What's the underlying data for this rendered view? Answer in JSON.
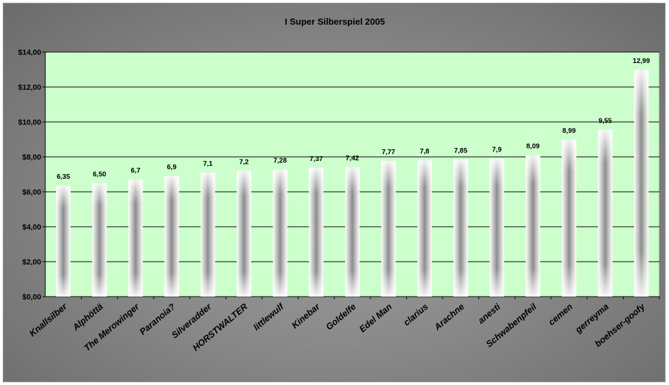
{
  "chart_data": {
    "type": "bar",
    "title": "I Super Silberspiel 2005",
    "xlabel": "",
    "ylabel": "",
    "ylim": [
      0,
      14
    ],
    "yticks": [
      0,
      2,
      4,
      6,
      8,
      10,
      12,
      14
    ],
    "ytick_labels": [
      "$0,00",
      "$2,00",
      "$4,00",
      "$6,00",
      "$8,00",
      "$10,00",
      "$12,00",
      "$14,00"
    ],
    "grid": true,
    "legend": "none",
    "categories": [
      "Knallsilber",
      "Alphöttä",
      "The Merowinger",
      "Paranoia?",
      "Silveradder",
      "HORSTWALTER",
      "littlewulf",
      "Kinebar",
      "Goldelfe",
      "Edel Man",
      "clarius",
      "Arachne",
      "anesti",
      "Schwabenpfeil",
      "cemen",
      "gerreyma",
      "boehser-goofy"
    ],
    "values": [
      6.35,
      6.5,
      6.7,
      6.9,
      7.1,
      7.2,
      7.28,
      7.37,
      7.42,
      7.77,
      7.8,
      7.85,
      7.9,
      8.09,
      8.99,
      9.55,
      12.99
    ],
    "data_labels": [
      "6,35",
      "6,50",
      "6,7",
      "6,9",
      "7,1",
      "7,2",
      "7,28",
      "7,37",
      "7,42",
      "7,77",
      "7,8",
      "7,85",
      "7,9",
      "8,09",
      "8,99",
      "9,55",
      "12,99"
    ],
    "colors": {
      "plot_background": "#ccffcc",
      "gridline": "#000000",
      "bar_edge": "#ffffff",
      "bar_center": "#8c8c8c",
      "frame_background": "#8a8a8a"
    }
  }
}
